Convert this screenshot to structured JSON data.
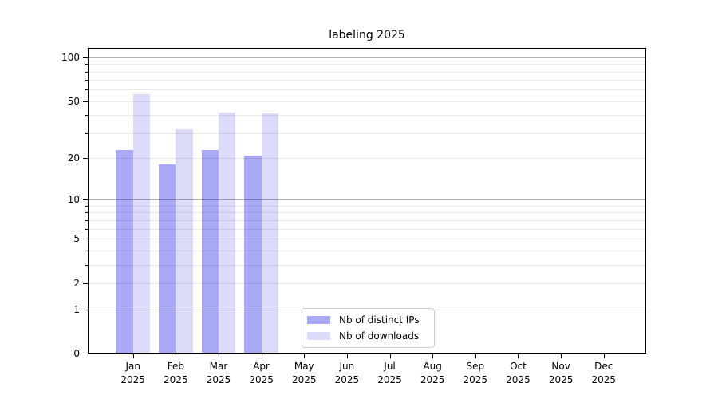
{
  "chart_data": {
    "type": "bar",
    "title": "labeling 2025",
    "categories": [
      "Jan",
      "Feb",
      "Mar",
      "Apr",
      "May",
      "Jun",
      "Jul",
      "Aug",
      "Sep",
      "Oct",
      "Nov",
      "Dec"
    ],
    "category_year": "2025",
    "series": [
      {
        "name": "Nb of distinct IPs",
        "color": "#a9a9f7",
        "values": [
          23,
          18,
          23,
          21,
          0,
          0,
          0,
          0,
          0,
          0,
          0,
          0
        ]
      },
      {
        "name": "Nb of downloads",
        "color": "#dcdcfa",
        "values": [
          56,
          32,
          42,
          41,
          0,
          0,
          0,
          0,
          0,
          0,
          0,
          0
        ]
      }
    ],
    "y_axis": {
      "scale": "log1p",
      "tick_labels": [
        "0",
        "1",
        "2",
        "5",
        "10",
        "20",
        "50",
        "100"
      ],
      "tick_values": [
        0,
        1,
        2,
        5,
        10,
        20,
        50,
        100
      ],
      "major_gridlines": [
        1,
        10,
        100
      ],
      "minor_gridlines": [
        2,
        3,
        4,
        5,
        6,
        7,
        8,
        9,
        20,
        30,
        40,
        50,
        60,
        70,
        80,
        90
      ],
      "max": 116
    },
    "legend": {
      "position": "lower-center",
      "entries": [
        "Nb of distinct IPs",
        "Nb of downloads"
      ]
    },
    "grid": true,
    "background_color": "#ffffff"
  }
}
